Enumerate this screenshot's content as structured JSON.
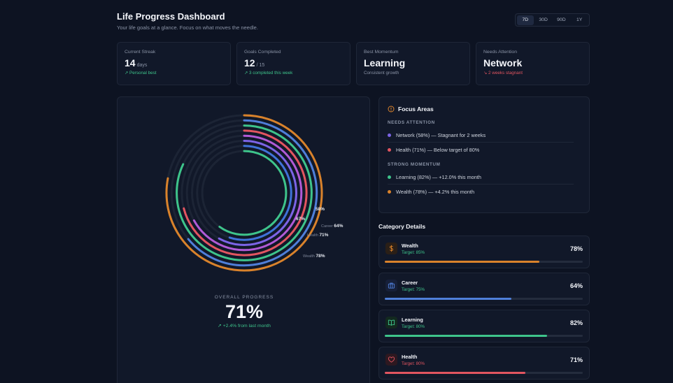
{
  "header": {
    "title": "Life Progress Dashboard",
    "subtitle": "Your life goals at a glance. Focus on what moves the needle.",
    "ranges": [
      "7D",
      "30D",
      "90D",
      "1Y"
    ],
    "active_range": "7D"
  },
  "stats": {
    "streak": {
      "label": "Current Streak",
      "value": "14",
      "unit": "days",
      "note": "Personal best"
    },
    "goals": {
      "label": "Goals Completed",
      "value": "12",
      "unit": "/ 15",
      "note": "3 completed this week"
    },
    "momentum": {
      "label": "Best Momentum",
      "value": "Learning",
      "note": "Consistent growth"
    },
    "attention": {
      "label": "Needs Attention",
      "value": "Network",
      "note": "2 weeks stagnant"
    }
  },
  "chart_data": {
    "type": "radial-bar",
    "series": [
      {
        "name": "Wealth",
        "value": 78,
        "label": "78%",
        "color": "#d9822b"
      },
      {
        "name": "Career",
        "value": 64,
        "label": "64%",
        "color": "#4f7fd9"
      },
      {
        "name": "Learning",
        "value": 82,
        "label": "",
        "color": "#3ec48b"
      },
      {
        "name": "Health",
        "value": 71,
        "label": "71%",
        "color": "#e25560"
      },
      {
        "name": "",
        "value": 67,
        "label": "67%",
        "color": "#b15ad6"
      },
      {
        "name": "",
        "value": 58,
        "label": "58%",
        "color": "#7c64e6"
      },
      {
        "name": "",
        "value": 55,
        "label": "",
        "color": "#3f72d8"
      },
      {
        "name": "",
        "value": 60,
        "label": "",
        "color": "#3ec48b"
      }
    ]
  },
  "overall": {
    "label": "OVERALL PROGRESS",
    "value": "71%",
    "change": "+2.4% from last month"
  },
  "focus": {
    "title": "Focus Areas",
    "needs_attention_label": "NEEDS ATTENTION",
    "needs_attention": [
      {
        "text": "Network (58%) — Stagnant for 2 weeks",
        "color": "#7c64e6"
      },
      {
        "text": "Health (71%) — Below target of 80%",
        "color": "#e25560"
      }
    ],
    "strong_label": "STRONG MOMENTUM",
    "strong": [
      {
        "text": "Learning (82%) — +12.0% this month",
        "color": "#3ec48b"
      },
      {
        "text": "Wealth (78%) — +4.2% this month",
        "color": "#d9822b"
      }
    ]
  },
  "categories_title": "Category Details",
  "categories": [
    {
      "name": "Wealth",
      "target": "Target: 85%",
      "percent": "78%",
      "progress": 0.78,
      "color": "#d9822b",
      "icon": "dollar-icon",
      "target_color": "#3ec48b"
    },
    {
      "name": "Career",
      "target": "Target: 75%",
      "percent": "64%",
      "progress": 0.64,
      "color": "#4f7fd9",
      "icon": "briefcase-icon",
      "target_color": "#3ec48b"
    },
    {
      "name": "Learning",
      "target": "Target: 80%",
      "percent": "82%",
      "progress": 0.82,
      "color": "#3ec48b",
      "icon": "book-icon",
      "target_color": "#3ec48b"
    },
    {
      "name": "Health",
      "target": "Target: 80%",
      "percent": "71%",
      "progress": 0.71,
      "color": "#e25560",
      "icon": "heart-icon",
      "target_color": "#e25560"
    }
  ]
}
